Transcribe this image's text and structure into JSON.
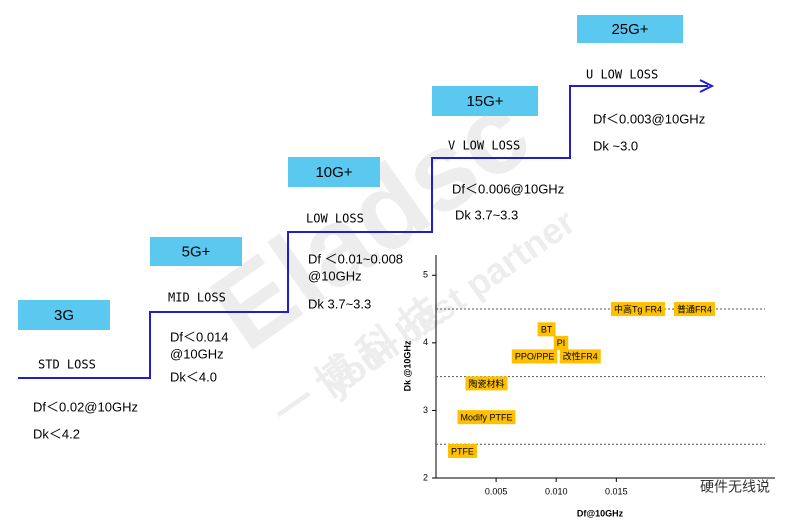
{
  "steps": [
    {
      "speed": "3G",
      "loss": "STD LOSS",
      "specs": [
        "Df＜0.02@10GHz",
        "Dk＜4.2"
      ]
    },
    {
      "speed": "5G+",
      "loss": "MID LOSS",
      "specs": [
        "Df＜0.014",
        "@10GHz",
        "Dk＜4.0"
      ]
    },
    {
      "speed": "10G+",
      "loss": "LOW LOSS",
      "specs": [
        "Df ＜0.01~0.008",
        "@10GHz",
        "Dk  3.7~3.3"
      ]
    },
    {
      "speed": "15G+",
      "loss": "V LOW LOSS",
      "specs": [
        "Df＜0.006@10GHz",
        "Dk  3.7~3.3"
      ]
    },
    {
      "speed": "25G+",
      "loss": "U LOW LOSS",
      "specs": [
        "Df＜0.003@10GHz",
        "Dk  ~3.0"
      ]
    }
  ],
  "watermark": {
    "brand": "Eladsc",
    "slogan": "your best partner",
    "cn": "一 博 科 技",
    "account": "硬件无线说"
  },
  "chart_data": {
    "type": "scatter",
    "x_label": "Df@10GHz",
    "y_label": "Dk @10GHz",
    "x": [
      0.0168,
      0.0215,
      0.0092,
      0.0104,
      0.0082,
      0.012,
      0.0042,
      0.0042,
      0.0022
    ],
    "values": [
      4.5,
      4.5,
      4.2,
      4.0,
      3.8,
      3.8,
      3.4,
      2.9,
      2.4
    ],
    "labels": [
      "中高Tg FR4",
      "普通FR4",
      "BT",
      "PI",
      "PPO/PPE",
      "改性FR4",
      "陶瓷材料",
      "Modify PTFE",
      "PTFE"
    ],
    "color": "#ffc000",
    "xlim": [
      0,
      0.0282
    ],
    "ylim": [
      2,
      5.3
    ],
    "xticks": [
      0.005,
      {
        "value": 0.01,
        "label": "0.010"
      },
      0.015
    ],
    "yticks": [
      2,
      3,
      4,
      5
    ],
    "reference_lines": [
      4.5,
      3.5,
      2.5
    ]
  }
}
